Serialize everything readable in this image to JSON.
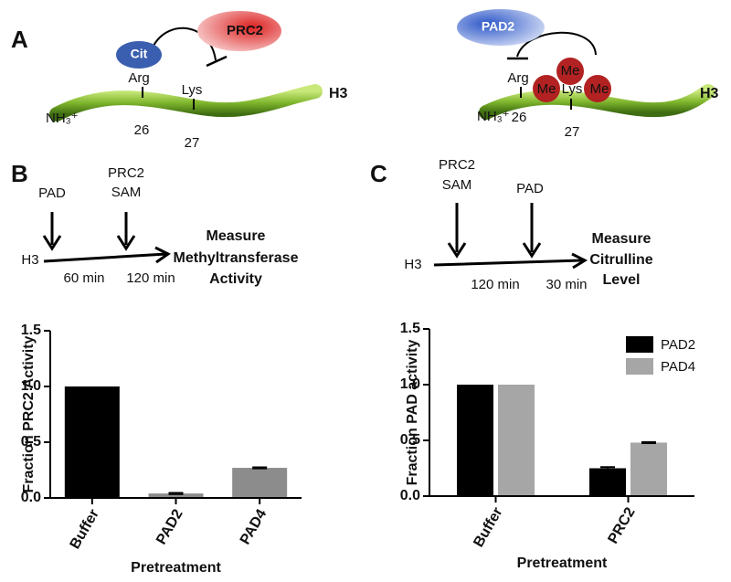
{
  "figure": {
    "panel_labels": [
      "A",
      "B",
      "C"
    ],
    "a_left": {
      "modifier": "Cit",
      "enzyme": "PRC2",
      "arg": "Arg",
      "lys": "Lys",
      "pos_arg": "26",
      "pos_lys": "27",
      "protein": "H3",
      "nterm": "NH₃⁺"
    },
    "a_right": {
      "enzyme": "PAD2",
      "arg": "Arg",
      "lys": "Lys",
      "me": [
        "Me",
        "Me",
        "Me"
      ],
      "pos_arg": "26",
      "pos_lys": "27",
      "protein": "H3",
      "nterm": "NH₃⁺"
    },
    "b_scheme": {
      "first": "PAD",
      "second": [
        "PRC2",
        "SAM"
      ],
      "substrate": "H3",
      "times": [
        "60 min",
        "120 min"
      ],
      "readout": [
        "Measure",
        "Methyltransferase",
        "Activity"
      ]
    },
    "c_scheme": {
      "first": [
        "PRC2",
        "SAM"
      ],
      "second": "PAD",
      "substrate": "H3",
      "times": [
        "120 min",
        "30 min"
      ],
      "readout": [
        "Measure",
        "Citrulline",
        "Level"
      ]
    }
  },
  "chart_data": [
    {
      "type": "bar",
      "ylabel": "Fraction PRC2 Activity",
      "xlabel": "Pretreatment",
      "categories": [
        "Buffer",
        "PAD2",
        "PAD4"
      ],
      "values": [
        1.0,
        0.04,
        0.27
      ],
      "errors": [
        null,
        0.005,
        0.005
      ],
      "colors": [
        "#000000",
        "#8c8c8c",
        "#8c8c8c"
      ],
      "ylim": [
        0,
        1.5
      ],
      "yticks": [
        {
          "value": 0,
          "label": "0.0"
        },
        {
          "value": 0.5,
          "label": "0.5"
        },
        {
          "value": 1,
          "label": "1.0"
        },
        {
          "value": 1.5,
          "label": "1.5"
        }
      ]
    },
    {
      "type": "grouped_bar",
      "ylabel": "Fraction PAD activity",
      "xlabel": "Pretreatment",
      "categories": [
        "Buffer",
        "PRC2"
      ],
      "series": [
        {
          "name": "PAD2",
          "color": "#000000",
          "values": [
            1.0,
            0.25
          ],
          "errors": [
            null,
            0.01
          ]
        },
        {
          "name": "PAD4",
          "color": "#a6a6a6",
          "values": [
            1.0,
            0.48
          ],
          "errors": [
            null,
            0.005
          ]
        }
      ],
      "legend": "upper right",
      "ylim": [
        0,
        1.5
      ],
      "yticks": [
        {
          "value": 0,
          "label": "0.0"
        },
        {
          "value": 0.5,
          "label": "0.5"
        },
        {
          "value": 1,
          "label": "1.0"
        },
        {
          "value": 1.5,
          "label": "1.5"
        }
      ]
    }
  ]
}
